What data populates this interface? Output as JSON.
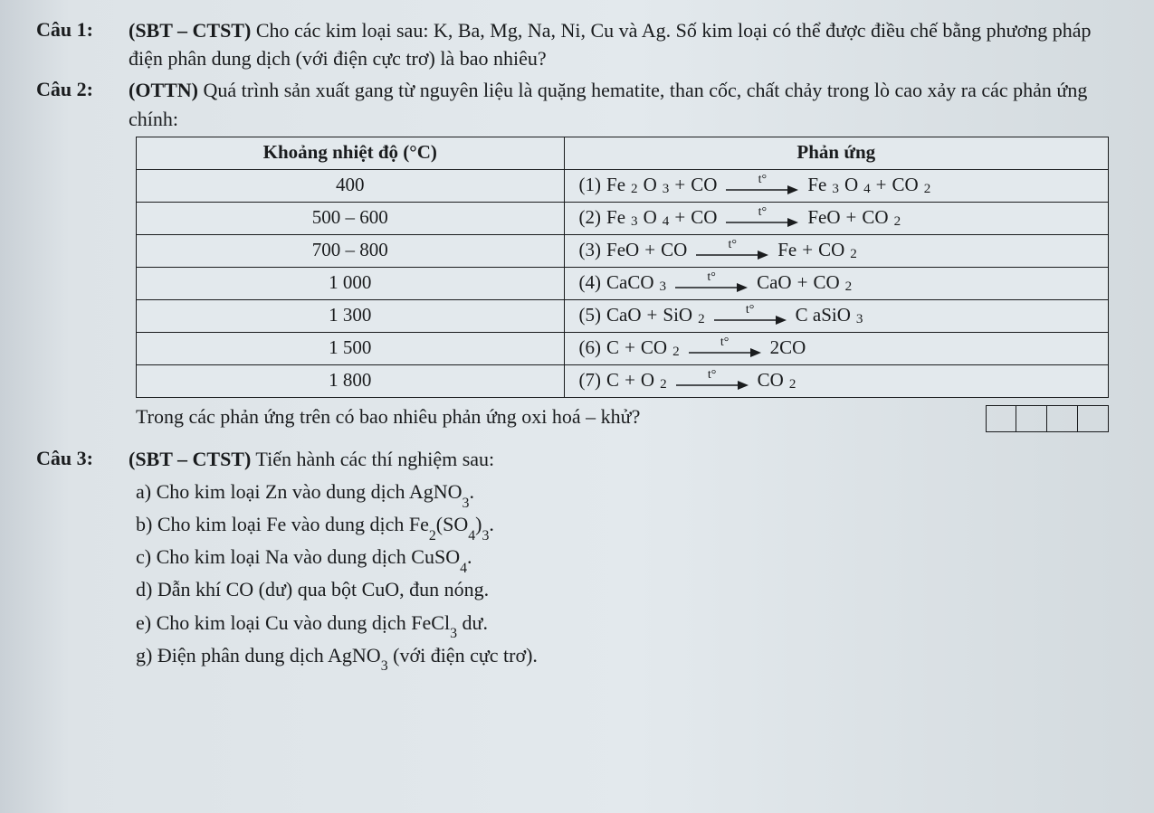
{
  "q1": {
    "label": "Câu 1:",
    "tag": "(SBT – CTST)",
    "text1": " Cho các kim loại sau: K, Ba, Mg, Na, Ni, Cu và Ag. Số kim loại có thể được điều chế bằng phương pháp điện phân dung dịch (với điện cực trơ) là bao nhiêu?"
  },
  "q2": {
    "label": "Câu 2:",
    "tag": "(OTTN)",
    "text1": " Quá trình sản xuất gang từ nguyên liệu là quặng hematite, than cốc, chất chảy trong lò cao xảy ra các phản ứng chính:",
    "table": {
      "col1": "Khoảng nhiệt độ (°C)",
      "col2": "Phản ứng",
      "rows": [
        {
          "temp": "400",
          "idx": "(1)",
          "lhs": [
            {
              "t": "Fe",
              "sub": "2"
            },
            {
              "t": "O",
              "sub": "3"
            },
            {
              "plus": true
            },
            {
              "t": "CO"
            }
          ],
          "rhs": [
            {
              "t": "Fe",
              "sub": "3"
            },
            {
              "t": "O",
              "sub": "4"
            },
            {
              "plus": true
            },
            {
              "t": "CO",
              "sub": "2"
            }
          ]
        },
        {
          "temp": "500 – 600",
          "idx": "(2)",
          "lhs": [
            {
              "t": "Fe",
              "sub": "3"
            },
            {
              "t": "O",
              "sub": "4"
            },
            {
              "plus": true
            },
            {
              "t": "CO"
            }
          ],
          "rhs": [
            {
              "t": "FeO"
            },
            {
              "plus": true
            },
            {
              "t": "CO",
              "sub": "2"
            }
          ]
        },
        {
          "temp": "700 – 800",
          "idx": "(3)",
          "lhs": [
            {
              "t": "FeO"
            },
            {
              "plus": true
            },
            {
              "t": "CO"
            }
          ],
          "rhs": [
            {
              "t": "Fe"
            },
            {
              "plus": true
            },
            {
              "t": "CO",
              "sub": "2"
            }
          ]
        },
        {
          "temp": "1 000",
          "idx": "(4)",
          "lhs": [
            {
              "t": "CaCO",
              "sub": "3"
            }
          ],
          "rhs": [
            {
              "t": "CaO"
            },
            {
              "plus": true
            },
            {
              "t": "CO",
              "sub": "2"
            }
          ]
        },
        {
          "temp": "1 300",
          "idx": "(5)",
          "lhs": [
            {
              "t": "CaO"
            },
            {
              "plus": true
            },
            {
              "t": "SiO",
              "sub": "2"
            }
          ],
          "rhs": [
            {
              "t": "C aSiO",
              "sub": "3"
            }
          ]
        },
        {
          "temp": "1 500",
          "idx": "(6)",
          "lhs": [
            {
              "t": "C"
            },
            {
              "plus": true
            },
            {
              "t": "CO",
              "sub": "2"
            }
          ],
          "rhs": [
            {
              "t": "2CO"
            }
          ]
        },
        {
          "temp": "1 800",
          "idx": "(7)",
          "lhs": [
            {
              "t": "C"
            },
            {
              "plus": true
            },
            {
              "t": "O",
              "sub": "2"
            }
          ],
          "rhs": [
            {
              "t": "CO",
              "sub": "2"
            }
          ]
        }
      ],
      "arrow_label": "t°",
      "arrow_color": "#1a1c1e",
      "arrow_width": 80
    },
    "followup": "Trong các phản ứng trên có bao nhiêu phản ứng oxi hoá – khử?",
    "answer_box_count": 4
  },
  "q3": {
    "label": "Câu 3:",
    "tag": "(SBT – CTST)",
    "lead": " Tiến hành các thí nghiệm sau:",
    "items_prefix": [
      "a)",
      "b)",
      "c)",
      "d)",
      "e)",
      "g)"
    ],
    "items": [
      {
        "pre": "Cho kim loại Zn vào dung dịch ",
        "chem": [
          {
            "t": "AgNO",
            "sub": "3"
          }
        ],
        "post": "."
      },
      {
        "pre": "Cho kim loại Fe vào dung dịch ",
        "chem": [
          {
            "t": "Fe",
            "sub": "2"
          },
          {
            "t": "(SO",
            "sub": "4"
          },
          {
            "t": ")",
            "sub": "3"
          }
        ],
        "post": "."
      },
      {
        "pre": "Cho kim loại Na vào dung dịch ",
        "chem": [
          {
            "t": "CuSO",
            "sub": "4"
          }
        ],
        "post": "."
      },
      {
        "pre": "Dẫn khí CO (dư) qua bột CuO, đun nóng.",
        "chem": [],
        "post": ""
      },
      {
        "pre": "Cho kim loại Cu vào dung dịch ",
        "chem": [
          {
            "t": "FeCl",
            "sub": "3"
          }
        ],
        "post": " dư."
      },
      {
        "pre": "Điện phân dung dịch ",
        "chem": [
          {
            "t": "AgNO",
            "sub": "3"
          }
        ],
        "post": " (với điện cực trơ)."
      }
    ]
  },
  "style": {
    "border_color": "#1a1c1e",
    "background": "#e3e9ed",
    "font_family": "Times New Roman"
  }
}
